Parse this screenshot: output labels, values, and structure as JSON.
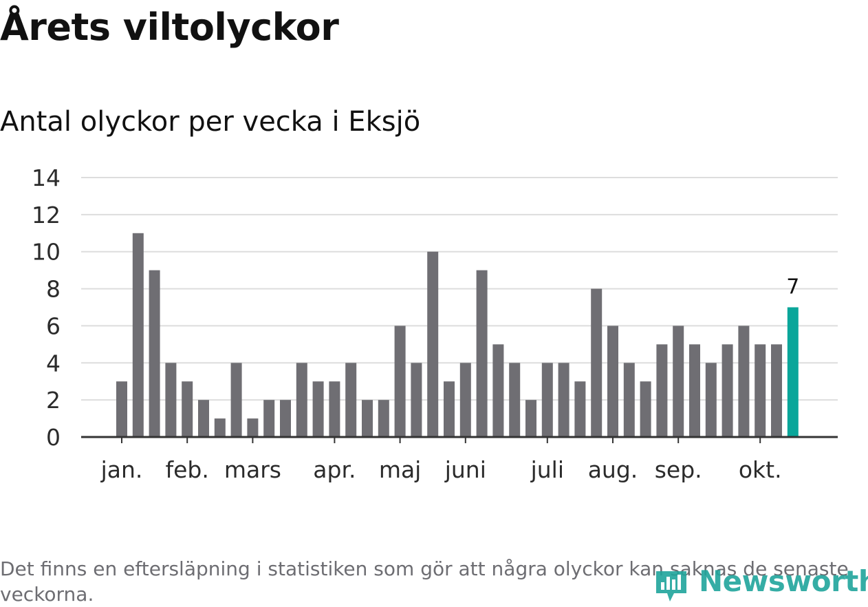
{
  "header": {
    "title": "Årets viltolyckor",
    "subtitle": "Antal olyckor per vecka i Eksjö"
  },
  "footnote": "Det finns en eftersläpning i statistiken som gör att några olyckor kan saknas de senaste veckorna.",
  "logo": {
    "text": "Newsworthy"
  },
  "colors": {
    "bar": "#6f6e73",
    "highlight": "#0aa69a",
    "grid": "#dddddd",
    "axis": "#333333"
  },
  "chart_data": {
    "type": "bar",
    "title": "Antal olyckor per vecka i Eksjö",
    "xlabel": "",
    "ylabel": "",
    "ylim": [
      0,
      14
    ],
    "y_ticks": [
      "0",
      "2",
      "4",
      "6",
      "8",
      "10",
      "12",
      "14"
    ],
    "values": [
      3,
      11,
      9,
      4,
      3,
      2,
      1,
      4,
      1,
      2,
      2,
      4,
      3,
      3,
      4,
      2,
      2,
      6,
      4,
      10,
      3,
      4,
      9,
      5,
      4,
      2,
      4,
      4,
      3,
      8,
      6,
      4,
      3,
      5,
      6,
      5,
      4,
      5,
      6,
      5,
      5,
      7
    ],
    "highlight_index": 41,
    "highlight_label": "7",
    "month_labels": [
      {
        "label": "jan.",
        "bar_index": 0
      },
      {
        "label": "feb.",
        "bar_index": 4
      },
      {
        "label": "mars",
        "bar_index": 8
      },
      {
        "label": "apr.",
        "bar_index": 13
      },
      {
        "label": "maj",
        "bar_index": 17
      },
      {
        "label": "juni",
        "bar_index": 21
      },
      {
        "label": "juli",
        "bar_index": 26
      },
      {
        "label": "aug.",
        "bar_index": 30
      },
      {
        "label": "sep.",
        "bar_index": 34
      },
      {
        "label": "okt.",
        "bar_index": 39
      }
    ],
    "grid": true
  }
}
